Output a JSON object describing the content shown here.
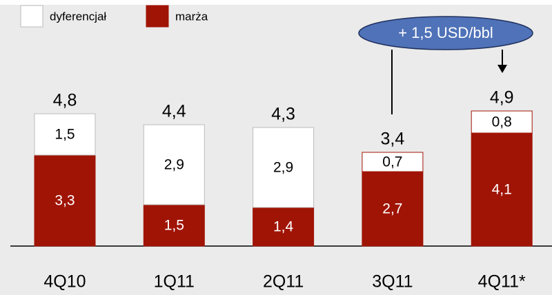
{
  "chart_data": {
    "type": "stacked_bar",
    "categories": [
      "4Q10",
      "1Q11",
      "2Q11",
      "3Q11",
      "4Q11*"
    ],
    "series": [
      {
        "name": "marża",
        "color": "#a01405",
        "values": [
          3.3,
          1.5,
          1.4,
          2.7,
          4.1
        ],
        "value_labels": [
          "3,3",
          "1,5",
          "1,4",
          "2,7",
          "4,1"
        ]
      },
      {
        "name": "dyferencjał",
        "color": "#ffffff",
        "values": [
          1.5,
          2.9,
          2.9,
          0.7,
          0.8
        ],
        "value_labels": [
          "1,5",
          "2,9",
          "2,9",
          "0,7",
          "0,8"
        ]
      }
    ],
    "totals": [
      4.8,
      4.4,
      4.3,
      3.4,
      4.9
    ],
    "total_labels": [
      "4,8",
      "4,4",
      "4,3",
      "3,4",
      "4,9"
    ],
    "annotation": "+ 1,5 USD/bbl"
  }
}
